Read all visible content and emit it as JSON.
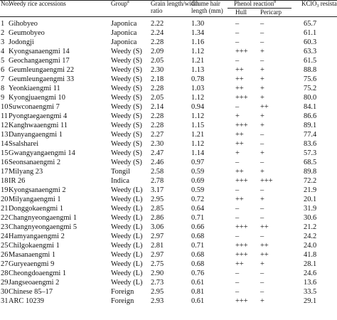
{
  "header": {
    "no": "No.",
    "accession": "Weedy rice accessions",
    "group": "Group",
    "group_sup": "a",
    "ratio_line1": "Grain length/width",
    "ratio_line2": "ratio",
    "glume_line1": "Glume hair",
    "glume_line2": "length (mm)",
    "phenol": "Phenol reaction",
    "phenol_sup": "b",
    "hull": "Hull",
    "pericarp": "Pericarp",
    "kclo3_prefix": "KClO",
    "kclo3_sub": "3",
    "kclo3_suffix": " resistance"
  },
  "rows": [
    {
      "no": "1",
      "name": "Gihobyeo",
      "group": "Japonica",
      "ratio": "2.22",
      "glume": "1.30",
      "hull": "–",
      "pericarp": "–",
      "kclo3": "65.7"
    },
    {
      "no": "2",
      "name": "Geumobyeo",
      "group": "Japonica",
      "ratio": "2.24",
      "glume": "1.34",
      "hull": "–",
      "pericarp": "–",
      "kclo3": "61.1"
    },
    {
      "no": "3",
      "name": "Jodongji",
      "group": "Japonica",
      "ratio": "2.28",
      "glume": "1.16",
      "hull": "–",
      "pericarp": "–",
      "kclo3": "60.3"
    },
    {
      "no": "4",
      "name": "Kyongsanaengmi 14",
      "group": "Weedy (S)",
      "ratio": "2.09",
      "glume": "1.12",
      "hull": "+++",
      "pericarp": "+",
      "kclo3": "63.3"
    },
    {
      "no": "5",
      "name": "Geochangaengmi 17",
      "group": "Weedy (S)",
      "ratio": "2.05",
      "glume": "1.21",
      "hull": "–",
      "pericarp": "–",
      "kclo3": "61.5"
    },
    {
      "no": "6",
      "name": "Geumleungaengmi 22",
      "group": "Weedy (S)",
      "ratio": "2.30",
      "glume": "1.13",
      "hull": "++",
      "pericarp": "+",
      "kclo3": "88.8"
    },
    {
      "no": "7",
      "name": "Geumleungaengmi 33",
      "group": "Weedy (S)",
      "ratio": "2.18",
      "glume": "0.78",
      "hull": "++",
      "pericarp": "+",
      "kclo3": "75.6"
    },
    {
      "no": "8",
      "name": "Yeonkiaengmi 11",
      "group": "Weedy (S)",
      "ratio": "2.28",
      "glume": "1.03",
      "hull": "++",
      "pericarp": "+",
      "kclo3": "75.2"
    },
    {
      "no": "9",
      "name": "Kyongjuaengmi 10",
      "group": "Weedy (S)",
      "ratio": "2.05",
      "glume": "1.12",
      "hull": "+++",
      "pericarp": "+",
      "kclo3": "80.0"
    },
    {
      "no": "10",
      "name": "Suwconaengmi 7",
      "group": "Weedy (S)",
      "ratio": "2.14",
      "glume": "0.94",
      "hull": "–",
      "pericarp": "++",
      "kclo3": "84.1"
    },
    {
      "no": "11",
      "name": "Pyongtaegaengmi 4",
      "group": "Weedy (S)",
      "ratio": "2.28",
      "glume": "1.12",
      "hull": "+",
      "pericarp": "+",
      "kclo3": "86.6"
    },
    {
      "no": "12",
      "name": "Kanghwaaengmi 11",
      "group": "Weedy (S)",
      "ratio": "2.28",
      "glume": "1.15",
      "hull": "+++",
      "pericarp": "+",
      "kclo3": "89.1"
    },
    {
      "no": "13",
      "name": "Danyangaengmi 1",
      "group": "Weedy (S)",
      "ratio": "2.27",
      "glume": "1.21",
      "hull": "++",
      "pericarp": "–",
      "kclo3": "77.4"
    },
    {
      "no": "14",
      "name": "Ssalsharei",
      "group": "Weedy (S)",
      "ratio": "2.30",
      "glume": "1.12",
      "hull": "++",
      "pericarp": "–",
      "kclo3": "83.6"
    },
    {
      "no": "15",
      "name": "Gwangyangaengmi 14",
      "group": "Weedy (S)",
      "ratio": "2.47",
      "glume": "1.14",
      "hull": "+",
      "pericarp": "+",
      "kclo3": "57.3"
    },
    {
      "no": "16",
      "name": "Seonsanaengmi 2",
      "group": "Weedy (S)",
      "ratio": "2.46",
      "glume": "0.97",
      "hull": "–",
      "pericarp": "–",
      "kclo3": "68.5"
    },
    {
      "no": "17",
      "name": "Milyang 23",
      "group": "Tongil",
      "ratio": "2.58",
      "glume": "0.59",
      "hull": "++",
      "pericarp": "+",
      "kclo3": "89.8"
    },
    {
      "no": "18",
      "name": "IR 26",
      "group": "Indica",
      "ratio": "2.78",
      "glume": "0.69",
      "hull": "+++",
      "pericarp": "+++",
      "kclo3": "72.2"
    },
    {
      "no": "19",
      "name": "Kyongsanaengmi 2",
      "group": "Weedy (L)",
      "ratio": "3.17",
      "glume": "0.59",
      "hull": "–",
      "pericarp": "–",
      "kclo3": "21.9"
    },
    {
      "no": "20",
      "name": "Milyangaengmi 1",
      "group": "Weedy (L)",
      "ratio": "2.95",
      "glume": "0.72",
      "hull": "++",
      "pericarp": "+",
      "kclo3": "20.1"
    },
    {
      "no": "21",
      "name": "Donggokaengmi 1",
      "group": "Weedy (L)",
      "ratio": "2.85",
      "glume": "0.64",
      "hull": "–",
      "pericarp": "–",
      "kclo3": "31.9"
    },
    {
      "no": "22",
      "name": "Changnyeongaengmi 1",
      "group": "Weedy (L)",
      "ratio": "2.86",
      "glume": "0.71",
      "hull": "–",
      "pericarp": "–",
      "kclo3": "30.6"
    },
    {
      "no": "23",
      "name": "Changnyeongaengmi 5",
      "group": "Weedy (L)",
      "ratio": "3.06",
      "glume": "0.66",
      "hull": "+++",
      "pericarp": "++",
      "kclo3": "21.2"
    },
    {
      "no": "24",
      "name": "Hamyangaengmi 2",
      "group": "Weedy (L)",
      "ratio": "2.97",
      "glume": "0.68",
      "hull": "–",
      "pericarp": "–",
      "kclo3": "24.2"
    },
    {
      "no": "25",
      "name": "Chilgokaengmi 1",
      "group": "Weedy (L)",
      "ratio": "2.81",
      "glume": "0.71",
      "hull": "+++",
      "pericarp": "++",
      "kclo3": "24.0"
    },
    {
      "no": "26",
      "name": "Masanaengmi 1",
      "group": "Weedy (L)",
      "ratio": "2.97",
      "glume": "0.68",
      "hull": "+++",
      "pericarp": "++",
      "kclo3": "41.8"
    },
    {
      "no": "27",
      "name": "Guryeaengmi 9",
      "group": "Weedy (L)",
      "ratio": "2.75",
      "glume": "0.68",
      "hull": "++",
      "pericarp": "+",
      "kclo3": "28.1"
    },
    {
      "no": "28",
      "name": "Cheongdoaengmi 1",
      "group": "Weedy (L)",
      "ratio": "2.90",
      "glume": "0.76",
      "hull": "–",
      "pericarp": "–",
      "kclo3": "24.6"
    },
    {
      "no": "29",
      "name": "Jangseoaengmi 2",
      "group": "Weedy (L)",
      "ratio": "2.73",
      "glume": "0.61",
      "hull": "–",
      "pericarp": "–",
      "kclo3": "13.6"
    },
    {
      "no": "30",
      "name": "Chinese 85–17",
      "group": "Foreign",
      "ratio": "2.95",
      "glume": "0.81",
      "hull": "–",
      "pericarp": "–",
      "kclo3": "33.5"
    },
    {
      "no": "31",
      "name": "ARC 10239",
      "group": "Foreign",
      "ratio": "2.93",
      "glume": "0.61",
      "hull": "+++",
      "pericarp": "+",
      "kclo3": "29.1"
    }
  ]
}
